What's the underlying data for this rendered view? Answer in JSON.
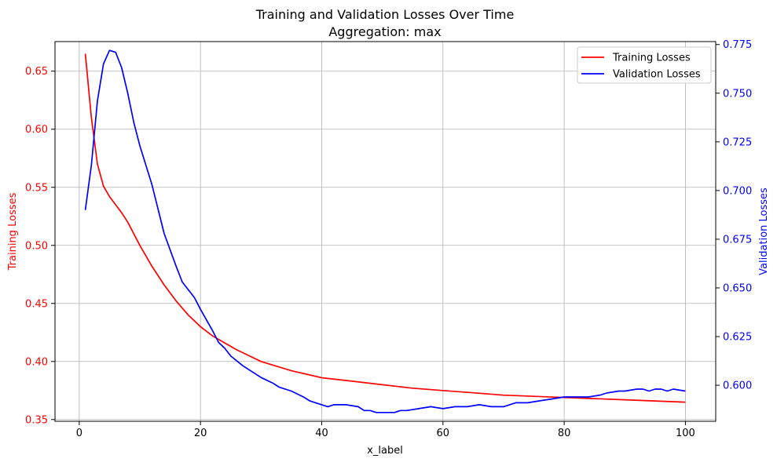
{
  "chart_data": {
    "type": "line",
    "title": "Training and Validation Losses Over Time",
    "subtitle": "Aggregation: max",
    "xlabel": "x_label",
    "ylabel_left": "Training Losses",
    "ylabel_right": "Validation Losses",
    "xlim": [
      -4.0,
      105.0
    ],
    "ylim_left": [
      0.3485,
      0.6755
    ],
    "ylim_right": [
      0.5815,
      0.7765
    ],
    "xticks": [
      0,
      20,
      40,
      60,
      80,
      100
    ],
    "xtick_labels": [
      "0",
      "20",
      "40",
      "60",
      "80",
      "100"
    ],
    "yticks_left": [
      0.35,
      0.4,
      0.45,
      0.5,
      0.55,
      0.6,
      0.65
    ],
    "ytick_labels_left": [
      "0.35",
      "0.40",
      "0.45",
      "0.50",
      "0.55",
      "0.60",
      "0.65"
    ],
    "yticks_right": [
      0.6,
      0.625,
      0.65,
      0.675,
      0.7,
      0.725,
      0.75,
      0.775
    ],
    "ytick_labels_right": [
      "0.600",
      "0.625",
      "0.650",
      "0.675",
      "0.700",
      "0.725",
      "0.750",
      "0.775"
    ],
    "grid": true,
    "legend_position": "top-right",
    "series": [
      {
        "name": "Training Losses",
        "color": "#ff0000",
        "axis": "left",
        "points": [
          [
            1,
            0.665
          ],
          [
            2,
            0.61
          ],
          [
            3,
            0.57
          ],
          [
            4,
            0.551
          ],
          [
            5,
            0.542
          ],
          [
            6,
            0.535
          ],
          [
            7,
            0.528
          ],
          [
            8,
            0.52
          ],
          [
            9,
            0.51
          ],
          [
            10,
            0.5
          ],
          [
            12,
            0.482
          ],
          [
            14,
            0.466
          ],
          [
            16,
            0.452
          ],
          [
            18,
            0.44
          ],
          [
            20,
            0.43
          ],
          [
            22,
            0.422
          ],
          [
            24,
            0.416
          ],
          [
            26,
            0.41
          ],
          [
            28,
            0.405
          ],
          [
            30,
            0.4
          ],
          [
            35,
            0.392
          ],
          [
            40,
            0.386
          ],
          [
            45,
            0.383
          ],
          [
            50,
            0.38
          ],
          [
            55,
            0.377
          ],
          [
            60,
            0.375
          ],
          [
            65,
            0.373
          ],
          [
            70,
            0.371
          ],
          [
            75,
            0.37
          ],
          [
            80,
            0.369
          ],
          [
            85,
            0.368
          ],
          [
            90,
            0.367
          ],
          [
            95,
            0.366
          ],
          [
            100,
            0.365
          ]
        ]
      },
      {
        "name": "Validation Losses",
        "color": "#0000ff",
        "axis": "right",
        "points": [
          [
            1,
            0.69
          ],
          [
            2,
            0.713
          ],
          [
            3,
            0.746
          ],
          [
            4,
            0.765
          ],
          [
            5,
            0.772
          ],
          [
            6,
            0.771
          ],
          [
            7,
            0.763
          ],
          [
            8,
            0.75
          ],
          [
            9,
            0.735
          ],
          [
            10,
            0.723
          ],
          [
            12,
            0.703
          ],
          [
            14,
            0.678
          ],
          [
            16,
            0.661
          ],
          [
            17,
            0.653
          ],
          [
            19,
            0.645
          ],
          [
            20,
            0.639
          ],
          [
            22,
            0.628
          ],
          [
            23,
            0.622
          ],
          [
            24,
            0.619
          ],
          [
            25,
            0.615
          ],
          [
            27,
            0.61
          ],
          [
            29,
            0.606
          ],
          [
            30,
            0.604
          ],
          [
            32,
            0.601
          ],
          [
            33,
            0.599
          ],
          [
            35,
            0.597
          ],
          [
            37,
            0.594
          ],
          [
            38,
            0.592
          ],
          [
            40,
            0.59
          ],
          [
            41,
            0.589
          ],
          [
            42,
            0.59
          ],
          [
            44,
            0.59
          ],
          [
            46,
            0.589
          ],
          [
            47,
            0.587
          ],
          [
            48,
            0.587
          ],
          [
            49,
            0.586
          ],
          [
            50,
            0.586
          ],
          [
            52,
            0.586
          ],
          [
            53,
            0.587
          ],
          [
            54,
            0.587
          ],
          [
            56,
            0.588
          ],
          [
            58,
            0.589
          ],
          [
            60,
            0.588
          ],
          [
            62,
            0.589
          ],
          [
            64,
            0.589
          ],
          [
            66,
            0.59
          ],
          [
            68,
            0.589
          ],
          [
            70,
            0.589
          ],
          [
            72,
            0.591
          ],
          [
            74,
            0.591
          ],
          [
            76,
            0.592
          ],
          [
            78,
            0.593
          ],
          [
            80,
            0.594
          ],
          [
            82,
            0.594
          ],
          [
            84,
            0.594
          ],
          [
            86,
            0.595
          ],
          [
            87,
            0.596
          ],
          [
            89,
            0.597
          ],
          [
            90,
            0.597
          ],
          [
            92,
            0.598
          ],
          [
            93,
            0.598
          ],
          [
            94,
            0.597
          ],
          [
            95,
            0.598
          ],
          [
            96,
            0.598
          ],
          [
            97,
            0.597
          ],
          [
            98,
            0.598
          ],
          [
            100,
            0.597
          ]
        ]
      }
    ]
  }
}
